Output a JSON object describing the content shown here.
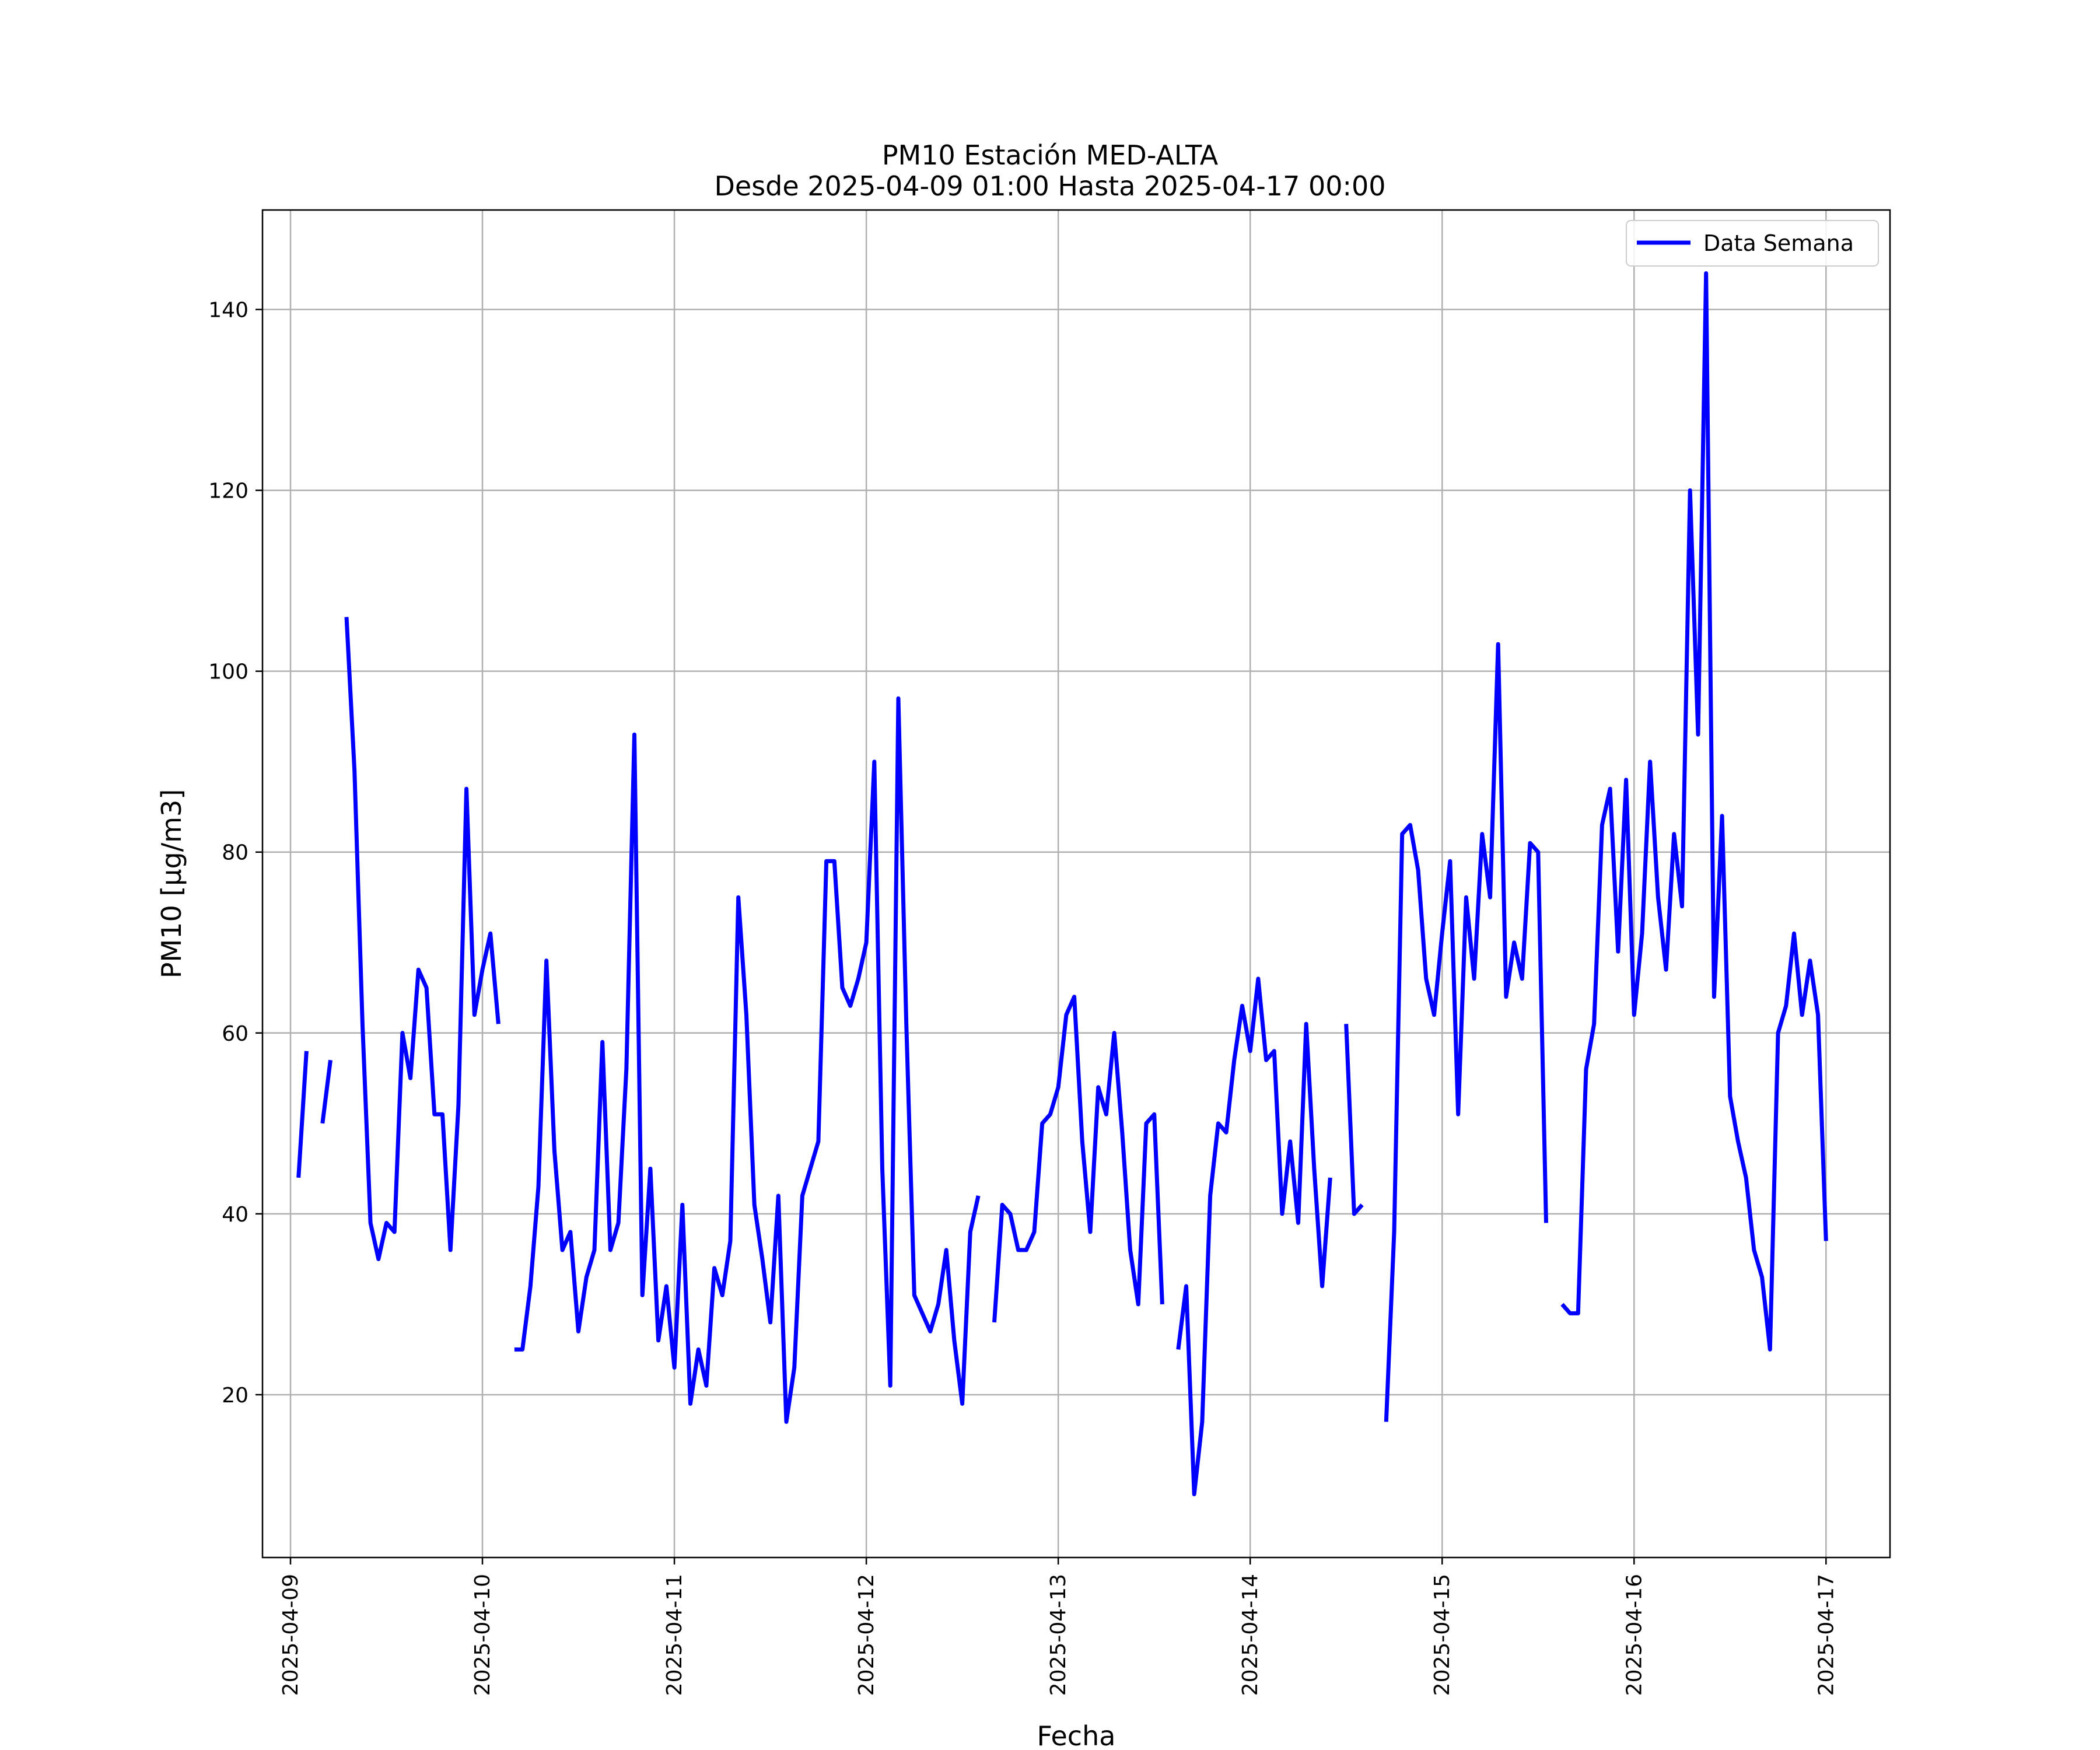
{
  "chart_data": {
    "type": "line",
    "title": "PM10 Estación MED-ALTA",
    "subtitle": "Desde 2025-04-09 01:00 Hasta 2025-04-17 00:00",
    "xlabel": "Fecha",
    "ylabel": "PM10 [μg/m3]",
    "xlim": [
      "2025-04-08 20:30",
      "2025-04-17 08:00"
    ],
    "ylim": [
      2,
      151
    ],
    "x_ticks": [
      "2025-04-09",
      "2025-04-10",
      "2025-04-11",
      "2025-04-12",
      "2025-04-13",
      "2025-04-14",
      "2025-04-15",
      "2025-04-16",
      "2025-04-17"
    ],
    "y_ticks": [
      20,
      40,
      60,
      80,
      100,
      120,
      140
    ],
    "grid": true,
    "legend_position": "top-right",
    "series": [
      {
        "name": "Data Semana",
        "color": "#0000ff",
        "points": [
          [
            "2025-04-09 01:00",
            44
          ],
          [
            "2025-04-09 02:00",
            58
          ],
          null,
          [
            "2025-04-09 04:00",
            50
          ],
          [
            "2025-04-09 05:00",
            57
          ],
          null,
          [
            "2025-04-09 07:00",
            106
          ],
          [
            "2025-04-09 08:00",
            89
          ],
          [
            "2025-04-09 09:00",
            61
          ],
          [
            "2025-04-09 10:00",
            39
          ],
          [
            "2025-04-09 11:00",
            35
          ],
          [
            "2025-04-09 12:00",
            39
          ],
          [
            "2025-04-09 13:00",
            38
          ],
          [
            "2025-04-09 14:00",
            60
          ],
          [
            "2025-04-09 15:00",
            55
          ],
          [
            "2025-04-09 16:00",
            67
          ],
          [
            "2025-04-09 17:00",
            65
          ],
          [
            "2025-04-09 18:00",
            51
          ],
          [
            "2025-04-09 19:00",
            51
          ],
          [
            "2025-04-09 20:00",
            36
          ],
          [
            "2025-04-09 21:00",
            52
          ],
          [
            "2025-04-09 22:00",
            87
          ],
          [
            "2025-04-09 23:00",
            62
          ],
          [
            "2025-04-10 00:00",
            67
          ],
          [
            "2025-04-10 01:00",
            71
          ],
          [
            "2025-04-10 02:00",
            61
          ],
          null,
          [
            "2025-04-10 04:00",
            25
          ],
          [
            "2025-04-10 05:00",
            25
          ],
          [
            "2025-04-10 06:00",
            32
          ],
          [
            "2025-04-10 07:00",
            43
          ],
          [
            "2025-04-10 08:00",
            68
          ],
          [
            "2025-04-10 09:00",
            47
          ],
          [
            "2025-04-10 10:00",
            36
          ],
          [
            "2025-04-10 11:00",
            38
          ],
          [
            "2025-04-10 12:00",
            27
          ],
          [
            "2025-04-10 13:00",
            33
          ],
          [
            "2025-04-10 14:00",
            36
          ],
          [
            "2025-04-10 15:00",
            59
          ],
          [
            "2025-04-10 16:00",
            36
          ],
          [
            "2025-04-10 17:00",
            39
          ],
          [
            "2025-04-10 18:00",
            56
          ],
          [
            "2025-04-10 19:00",
            93
          ],
          [
            "2025-04-10 20:00",
            31
          ],
          [
            "2025-04-10 21:00",
            45
          ],
          [
            "2025-04-10 22:00",
            26
          ],
          [
            "2025-04-10 23:00",
            32
          ],
          [
            "2025-04-11 00:00",
            23
          ],
          [
            "2025-04-11 01:00",
            41
          ],
          [
            "2025-04-11 02:00",
            19
          ],
          [
            "2025-04-11 03:00",
            25
          ],
          [
            "2025-04-11 04:00",
            21
          ],
          [
            "2025-04-11 05:00",
            34
          ],
          [
            "2025-04-11 06:00",
            31
          ],
          [
            "2025-04-11 07:00",
            37
          ],
          [
            "2025-04-11 08:00",
            75
          ],
          [
            "2025-04-11 09:00",
            62
          ],
          [
            "2025-04-11 10:00",
            41
          ],
          [
            "2025-04-11 11:00",
            35
          ],
          [
            "2025-04-11 12:00",
            28
          ],
          [
            "2025-04-11 13:00",
            42
          ],
          [
            "2025-04-11 14:00",
            17
          ],
          [
            "2025-04-11 15:00",
            23
          ],
          [
            "2025-04-11 16:00",
            42
          ],
          [
            "2025-04-11 17:00",
            45
          ],
          [
            "2025-04-11 18:00",
            48
          ],
          [
            "2025-04-11 19:00",
            79
          ],
          [
            "2025-04-11 20:00",
            79
          ],
          [
            "2025-04-11 21:00",
            65
          ],
          [
            "2025-04-11 22:00",
            63
          ],
          [
            "2025-04-11 23:00",
            66
          ],
          [
            "2025-04-12 00:00",
            70
          ],
          [
            "2025-04-12 01:00",
            90
          ],
          [
            "2025-04-12 02:00",
            45
          ],
          [
            "2025-04-12 03:00",
            21
          ],
          [
            "2025-04-12 04:00",
            97
          ],
          [
            "2025-04-12 05:00",
            61
          ],
          [
            "2025-04-12 06:00",
            31
          ],
          [
            "2025-04-12 07:00",
            29
          ],
          [
            "2025-04-12 08:00",
            27
          ],
          [
            "2025-04-12 09:00",
            30
          ],
          [
            "2025-04-12 10:00",
            36
          ],
          [
            "2025-04-12 11:00",
            26
          ],
          [
            "2025-04-12 12:00",
            19
          ],
          [
            "2025-04-12 13:00",
            38
          ],
          [
            "2025-04-12 14:00",
            42
          ],
          null,
          [
            "2025-04-12 16:00",
            28
          ],
          [
            "2025-04-12 17:00",
            41
          ],
          [
            "2025-04-12 18:00",
            40
          ],
          [
            "2025-04-12 19:00",
            36
          ],
          [
            "2025-04-12 20:00",
            36
          ],
          [
            "2025-04-12 21:00",
            38
          ],
          [
            "2025-04-12 22:00",
            50
          ],
          [
            "2025-04-12 23:00",
            51
          ],
          [
            "2025-04-13 00:00",
            54
          ],
          [
            "2025-04-13 01:00",
            62
          ],
          [
            "2025-04-13 02:00",
            64
          ],
          [
            "2025-04-13 03:00",
            48
          ],
          [
            "2025-04-13 04:00",
            38
          ],
          [
            "2025-04-13 05:00",
            54
          ],
          [
            "2025-04-13 06:00",
            51
          ],
          [
            "2025-04-13 07:00",
            60
          ],
          [
            "2025-04-13 08:00",
            49
          ],
          [
            "2025-04-13 09:00",
            36
          ],
          [
            "2025-04-13 10:00",
            30
          ],
          [
            "2025-04-13 11:00",
            50
          ],
          [
            "2025-04-13 12:00",
            51
          ],
          [
            "2025-04-13 13:00",
            30
          ],
          null,
          [
            "2025-04-13 15:00",
            25
          ],
          [
            "2025-04-13 16:00",
            32
          ],
          [
            "2025-04-13 17:00",
            9
          ],
          [
            "2025-04-13 18:00",
            17
          ],
          [
            "2025-04-13 19:00",
            42
          ],
          [
            "2025-04-13 20:00",
            50
          ],
          [
            "2025-04-13 21:00",
            49
          ],
          [
            "2025-04-13 22:00",
            57
          ],
          [
            "2025-04-13 23:00",
            63
          ],
          [
            "2025-04-14 00:00",
            58
          ],
          [
            "2025-04-14 01:00",
            66
          ],
          [
            "2025-04-14 02:00",
            57
          ],
          [
            "2025-04-14 03:00",
            58
          ],
          [
            "2025-04-14 04:00",
            40
          ],
          [
            "2025-04-14 05:00",
            48
          ],
          [
            "2025-04-14 06:00",
            39
          ],
          [
            "2025-04-14 07:00",
            61
          ],
          [
            "2025-04-14 08:00",
            45
          ],
          [
            "2025-04-14 09:00",
            32
          ],
          [
            "2025-04-14 10:00",
            44
          ],
          null,
          [
            "2025-04-14 12:00",
            61
          ],
          [
            "2025-04-14 13:00",
            40
          ],
          [
            "2025-04-14 14:00",
            41
          ],
          null,
          [
            "2025-04-14 17:00",
            17
          ],
          [
            "2025-04-14 18:00",
            38
          ],
          [
            "2025-04-14 19:00",
            82
          ],
          [
            "2025-04-14 20:00",
            83
          ],
          [
            "2025-04-14 21:00",
            78
          ],
          [
            "2025-04-14 22:00",
            66
          ],
          [
            "2025-04-14 23:00",
            62
          ],
          [
            "2025-04-15 00:00",
            71
          ],
          [
            "2025-04-15 01:00",
            79
          ],
          [
            "2025-04-15 02:00",
            51
          ],
          [
            "2025-04-15 03:00",
            75
          ],
          [
            "2025-04-15 04:00",
            66
          ],
          [
            "2025-04-15 05:00",
            82
          ],
          [
            "2025-04-15 06:00",
            75
          ],
          [
            "2025-04-15 07:00",
            103
          ],
          [
            "2025-04-15 08:00",
            64
          ],
          [
            "2025-04-15 09:00",
            70
          ],
          [
            "2025-04-15 10:00",
            66
          ],
          [
            "2025-04-15 11:00",
            81
          ],
          [
            "2025-04-15 12:00",
            80
          ],
          [
            "2025-04-15 13:00",
            39
          ],
          null,
          [
            "2025-04-15 15:00",
            30
          ],
          [
            "2025-04-15 16:00",
            29
          ],
          [
            "2025-04-15 17:00",
            29
          ],
          [
            "2025-04-15 18:00",
            56
          ],
          [
            "2025-04-15 19:00",
            61
          ],
          [
            "2025-04-15 20:00",
            83
          ],
          [
            "2025-04-15 21:00",
            87
          ],
          [
            "2025-04-15 22:00",
            69
          ],
          [
            "2025-04-15 23:00",
            88
          ],
          [
            "2025-04-16 00:00",
            62
          ],
          [
            "2025-04-16 01:00",
            71
          ],
          [
            "2025-04-16 02:00",
            90
          ],
          [
            "2025-04-16 03:00",
            75
          ],
          [
            "2025-04-16 04:00",
            67
          ],
          [
            "2025-04-16 05:00",
            82
          ],
          [
            "2025-04-16 06:00",
            74
          ],
          [
            "2025-04-16 07:00",
            120
          ],
          [
            "2025-04-16 08:00",
            93
          ],
          [
            "2025-04-16 09:00",
            144
          ],
          [
            "2025-04-16 10:00",
            64
          ],
          [
            "2025-04-16 11:00",
            84
          ],
          [
            "2025-04-16 12:00",
            53
          ],
          [
            "2025-04-16 13:00",
            48
          ],
          [
            "2025-04-16 14:00",
            44
          ],
          [
            "2025-04-16 15:00",
            36
          ],
          [
            "2025-04-16 16:00",
            33
          ],
          [
            "2025-04-16 17:00",
            25
          ],
          [
            "2025-04-16 18:00",
            60
          ],
          [
            "2025-04-16 19:00",
            63
          ],
          [
            "2025-04-16 20:00",
            71
          ],
          [
            "2025-04-16 21:00",
            62
          ],
          [
            "2025-04-16 22:00",
            68
          ],
          [
            "2025-04-16 23:00",
            62
          ],
          [
            "2025-04-17 00:00",
            37
          ]
        ]
      }
    ]
  }
}
